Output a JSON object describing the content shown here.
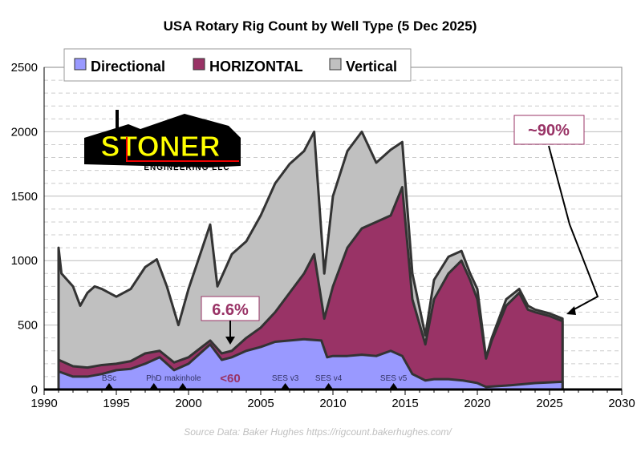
{
  "chart_data": {
    "type": "area",
    "title": "USA Rotary Rig Count by Well Type (5 Dec 2025)",
    "source": "Source Data: Baker Hughes https://rigcount.bakerhughes.com/",
    "xlim": [
      1990,
      2030
    ],
    "ylim": [
      0,
      2500
    ],
    "xticks": [
      1990,
      1995,
      2000,
      2005,
      2010,
      2015,
      2020,
      2025,
      2030
    ],
    "yticks": [
      0,
      500,
      1000,
      1500,
      2000,
      2500
    ],
    "grid": true,
    "legend_placement": "top-left",
    "stacked": true,
    "series": [
      {
        "name": "Directional",
        "color": "#9999ff",
        "x": [
          1991,
          1992,
          1993,
          1994,
          1995,
          1996,
          1997,
          1998,
          1999,
          2000,
          2001.5,
          2002.3,
          2003,
          2004,
          2005,
          2006,
          2007,
          2008,
          2009.2,
          2009.6,
          2010,
          2011,
          2012,
          2013,
          2014,
          2014.8,
          2015.5,
          2016.4,
          2017,
          2018,
          2019,
          2020,
          2020.6,
          2022,
          2024,
          2025.9
        ],
        "y": [
          140,
          100,
          100,
          120,
          150,
          160,
          200,
          250,
          150,
          200,
          350,
          230,
          250,
          300,
          330,
          370,
          380,
          390,
          380,
          250,
          260,
          260,
          270,
          260,
          300,
          260,
          120,
          70,
          80,
          80,
          70,
          50,
          20,
          30,
          50,
          60
        ]
      },
      {
        "name": "HORIZONTAL",
        "color": "#993366",
        "x": [
          1991,
          1992,
          1993,
          1994,
          1995,
          1996,
          1997,
          1998,
          1999,
          2000,
          2001.5,
          2002.3,
          2003,
          2004,
          2005,
          2006,
          2007,
          2008,
          2008.7,
          2009.4,
          2010,
          2011,
          2012,
          2013,
          2014,
          2014.8,
          2015.5,
          2016.4,
          2017,
          2018,
          2018.9,
          2019.5,
          2020,
          2020.6,
          2021,
          2022,
          2022.9,
          2023.5,
          2024,
          2025,
          2025.9
        ],
        "y_cumulative": [
          230,
          180,
          170,
          190,
          200,
          220,
          280,
          300,
          210,
          250,
          380,
          280,
          300,
          400,
          480,
          600,
          750,
          900,
          1050,
          550,
          800,
          1100,
          1250,
          1300,
          1350,
          1570,
          700,
          350,
          700,
          900,
          1000,
          850,
          700,
          240,
          380,
          650,
          750,
          620,
          600,
          570,
          530
        ]
      },
      {
        "name": "Vertical",
        "color": "#c0c0c0",
        "x": [
          1991,
          1991.2,
          1992,
          1992.5,
          1993,
          1993.5,
          1994,
          1995,
          1996,
          1997,
          1997.8,
          1998.5,
          1999.3,
          2000,
          2001.5,
          2002,
          2003,
          2004,
          2005,
          2006,
          2007,
          2008,
          2008.7,
          2009.4,
          2010,
          2011,
          2012,
          2013,
          2014,
          2014.8,
          2015.5,
          2016.4,
          2017,
          2018,
          2018.9,
          2019.5,
          2020,
          2020.6,
          2021,
          2022,
          2022.9,
          2023.5,
          2024,
          2025,
          2025.9
        ],
        "y_cumulative": [
          1100,
          900,
          800,
          650,
          750,
          800,
          780,
          720,
          780,
          950,
          1010,
          800,
          500,
          780,
          1280,
          800,
          1050,
          1150,
          1350,
          1600,
          1750,
          1850,
          2000,
          900,
          1500,
          1850,
          2000,
          1760,
          1860,
          1920,
          900,
          420,
          850,
          1030,
          1075,
          900,
          780,
          245,
          400,
          700,
          780,
          650,
          620,
          590,
          550
        ]
      }
    ],
    "annotations": [
      {
        "text": "6.6%",
        "x": 2003,
        "y": 400,
        "color": "#993366"
      },
      {
        "text": "~90%",
        "x": 2025.5,
        "y": 540,
        "color": "#993366"
      },
      {
        "text": "<60",
        "x": 2003,
        "y": 80,
        "color": "#993366"
      }
    ],
    "markers": [
      {
        "text": "BSc",
        "x": 1994.5
      },
      {
        "text": "PhD",
        "x": 1997.6
      },
      {
        "text": "makinhole",
        "x": 1999.6
      },
      {
        "text": "SES v3",
        "x": 2006.7
      },
      {
        "text": "SES v4",
        "x": 2009.7
      },
      {
        "text": "SES v5",
        "x": 2014.2
      }
    ]
  },
  "logo": {
    "name": "STONER",
    "sub": "ENGINEERING LLC"
  }
}
